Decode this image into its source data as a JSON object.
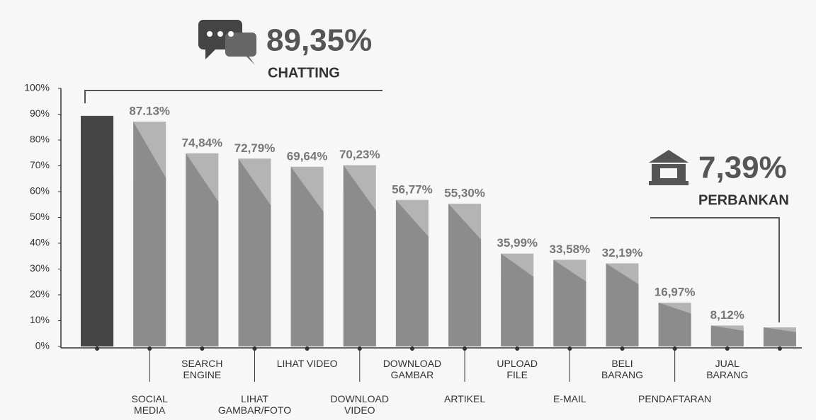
{
  "chart_data": {
    "type": "bar",
    "categories": [
      "CHATTING",
      "SOCIAL MEDIA",
      "SEARCH ENGINE",
      "LIHAT GAMBAR/FOTO",
      "LIHAT VIDEO",
      "DOWNLOAD VIDEO",
      "DOWNLOAD GAMBAR",
      "ARTIKEL",
      "UPLOAD FILE",
      "E-MAIL",
      "BELI BARANG",
      "PENDAFTARAN",
      "JUAL BARANG",
      "PERBANKAN"
    ],
    "values": [
      89.35,
      87.13,
      74.84,
      72.79,
      69.64,
      70.23,
      56.77,
      55.3,
      35.99,
      33.58,
      32.19,
      16.97,
      8.12,
      7.39
    ],
    "value_labels": [
      "89,35%",
      "87.13%",
      "74,84%",
      "72,79%",
      "69,64%",
      "70,23%",
      "56,77%",
      "55,30%",
      "35,99%",
      "33,58%",
      "32,19%",
      "16,97%",
      "8,12%",
      "7,39%"
    ],
    "color": "#8c8c8c",
    "highlight_color": "#454545",
    "ylim": [
      0,
      100
    ],
    "yticks": [
      {
        "value": 0,
        "label": "0%"
      },
      {
        "value": 10,
        "label": "10%"
      },
      {
        "value": 20,
        "label": "20%"
      },
      {
        "value": 30,
        "label": "30%"
      },
      {
        "value": 40,
        "label": "40%"
      },
      {
        "value": 50,
        "label": "50%"
      },
      {
        "value": 60,
        "label": "60%"
      },
      {
        "value": 70,
        "label": "70%"
      },
      {
        "value": 80,
        "label": "80%"
      },
      {
        "value": 90,
        "label": "90%"
      },
      {
        "value": 100,
        "label": "100%"
      }
    ]
  }
}
